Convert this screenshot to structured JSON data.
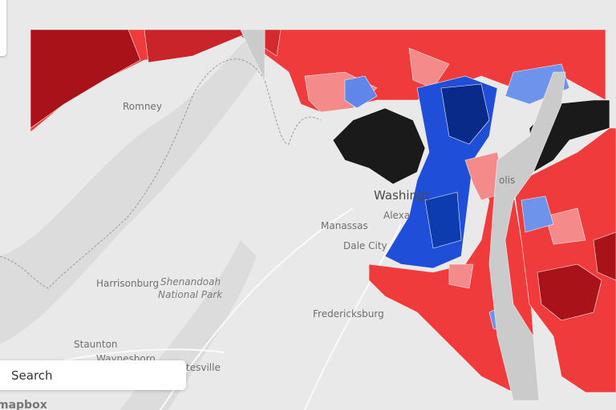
{
  "map": {
    "labels": [
      "Romney",
      "Washingt",
      "Alexa",
      "Manassas",
      "Dale City",
      "Harrisonburg",
      "Shenandoah",
      "National Park",
      "Fredericksburg",
      "Staunton",
      "Waynesboro",
      "tesville",
      "olis"
    ]
  },
  "search": {
    "placeholder": "Search"
  },
  "attribution": "mapbox"
}
